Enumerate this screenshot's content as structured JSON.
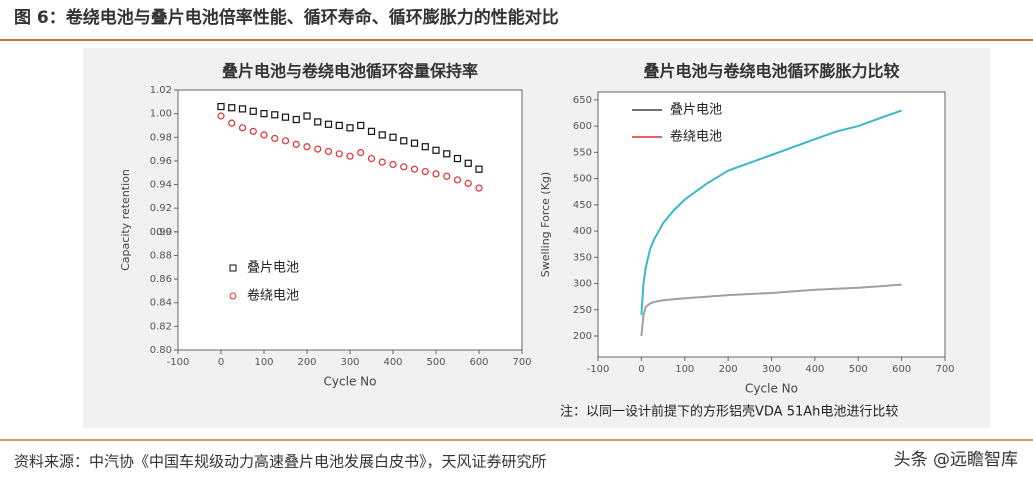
{
  "header": {
    "title": "图 6：卷绕电池与叠片电池倍率性能、循环寿命、循环膨胀力的性能对比"
  },
  "chart_data": [
    {
      "type": "scatter",
      "title": "叠片电池与卷绕电池循环容量保持率",
      "x_label": "Cycle No",
      "y_label": "Capacity retention",
      "xlim": [
        -100,
        700
      ],
      "xticks": [
        -100,
        0,
        100,
        200,
        300,
        400,
        500,
        600,
        700
      ],
      "ylim": [
        0.8,
        1.02
      ],
      "yticks": [
        {
          "value": 0.8,
          "label": "0.80"
        },
        0.82,
        0.84,
        0.86,
        0.88,
        0.9,
        {
          "value": 0.9,
          "label": "0.90"
        },
        0.92,
        0.94,
        0.96,
        0.98,
        {
          "value": 1.0,
          "label": "1.00"
        },
        1.02
      ],
      "series": [
        {
          "name": "叠片电池",
          "color": "#111111",
          "marker": "square",
          "x": [
            0,
            25,
            50,
            75,
            100,
            125,
            150,
            175,
            200,
            225,
            250,
            275,
            300,
            325,
            350,
            375,
            400,
            425,
            450,
            475,
            500,
            525,
            550,
            575,
            600
          ],
          "values": [
            1.006,
            1.005,
            1.004,
            1.002,
            1.0,
            0.999,
            0.997,
            0.995,
            0.998,
            0.993,
            0.991,
            0.99,
            0.988,
            0.99,
            0.985,
            0.982,
            0.98,
            0.977,
            0.975,
            0.972,
            0.969,
            0.966,
            0.962,
            0.958,
            0.953
          ]
        },
        {
          "name": "卷绕电池",
          "color": "#e03030",
          "marker": "circle",
          "x": [
            0,
            25,
            50,
            75,
            100,
            125,
            150,
            175,
            200,
            225,
            250,
            275,
            300,
            325,
            350,
            375,
            400,
            425,
            450,
            475,
            500,
            525,
            550,
            575,
            600
          ],
          "values": [
            0.998,
            0.992,
            0.988,
            0.985,
            0.982,
            0.979,
            0.977,
            0.974,
            0.972,
            0.97,
            0.968,
            0.966,
            0.964,
            0.967,
            0.962,
            0.959,
            0.957,
            0.955,
            0.953,
            0.951,
            0.949,
            0.947,
            0.944,
            0.941,
            0.937
          ]
        }
      ]
    },
    {
      "type": "line",
      "title": "叠片电池与卷绕电池循环膨胀力比较",
      "x_label": "Cycle No",
      "y_label": "Swelling Force (Kg)",
      "xlim": [
        -100,
        700
      ],
      "xticks": [
        -100,
        0,
        100,
        200,
        300,
        400,
        500,
        600,
        700
      ],
      "ylim": [
        160,
        665
      ],
      "yticks": [
        200,
        250,
        300,
        350,
        400,
        450,
        500,
        550,
        600,
        650
      ],
      "series": [
        {
          "name": "叠片电池",
          "color": "#a0a0a0",
          "legend_color": "#444444",
          "x": [
            0,
            5,
            10,
            20,
            30,
            50,
            75,
            100,
            150,
            200,
            250,
            300,
            350,
            400,
            450,
            500,
            550,
            600
          ],
          "values": [
            200,
            240,
            255,
            262,
            265,
            268,
            270,
            272,
            275,
            278,
            280,
            282,
            285,
            288,
            290,
            292,
            295,
            298
          ]
        },
        {
          "name": "卷绕电池",
          "color": "#3ab8c8",
          "legend_color": "#e03030",
          "x": [
            0,
            5,
            10,
            20,
            30,
            50,
            75,
            100,
            150,
            200,
            250,
            300,
            350,
            400,
            450,
            500,
            550,
            600
          ],
          "values": [
            240,
            300,
            330,
            365,
            385,
            415,
            440,
            460,
            490,
            515,
            530,
            545,
            560,
            575,
            590,
            600,
            615,
            630
          ]
        }
      ]
    }
  ],
  "note": "注：以同一设计前提下的方形铝壳VDA 51Ah电池进行比较",
  "source": "资料来源：中汽协《中国车规级动力高速叠片电池发展白皮书》，天风证券研究所",
  "watermark": "头条 @远瞻智库"
}
